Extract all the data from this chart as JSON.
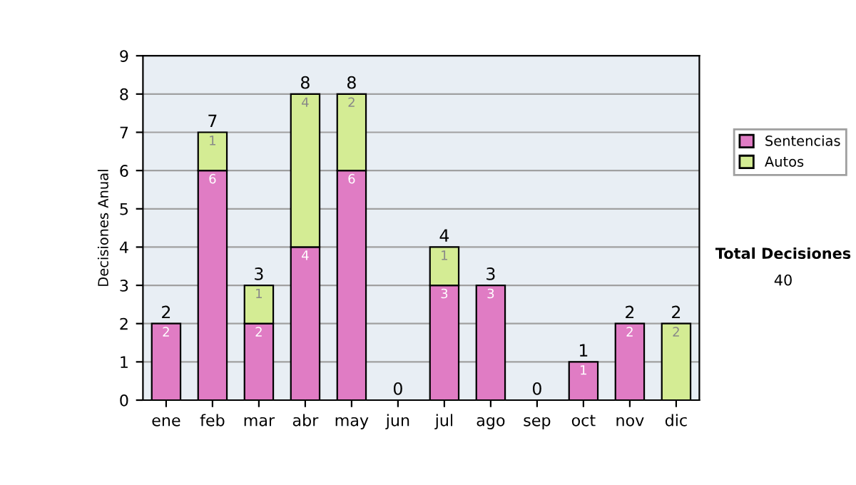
{
  "chart_data": {
    "type": "bar",
    "stacked": true,
    "ylabel": "Decisiones Anual",
    "categories": [
      "ene",
      "feb",
      "mar",
      "abr",
      "may",
      "jun",
      "jul",
      "ago",
      "sep",
      "oct",
      "nov",
      "dic"
    ],
    "series": [
      {
        "name": "Sentencias",
        "color": "#e07cc4",
        "values": [
          2,
          6,
          2,
          4,
          6,
          0,
          3,
          3,
          0,
          1,
          2,
          0
        ],
        "value_labels": [
          "2",
          "6",
          "2",
          "4",
          "6",
          null,
          "3",
          "3",
          null,
          "1",
          "2",
          null
        ]
      },
      {
        "name": "Autos",
        "color": "#d4ec94",
        "values": [
          0,
          1,
          1,
          4,
          2,
          0,
          1,
          0,
          0,
          0,
          0,
          2
        ],
        "value_labels": [
          null,
          "1",
          "1",
          "4",
          "2",
          null,
          "1",
          null,
          null,
          null,
          null,
          "2"
        ]
      }
    ],
    "totals": [
      "2",
      "7",
      "3",
      "8",
      "8",
      "0",
      "4",
      "3",
      "0",
      "1",
      "2",
      "2"
    ],
    "ylim": [
      0,
      9
    ],
    "yticks": [
      0,
      1,
      2,
      3,
      4,
      5,
      6,
      7,
      8,
      9
    ],
    "grid": "y",
    "legend": "right",
    "annotations": [
      "Total Decisiones",
      "40"
    ]
  }
}
